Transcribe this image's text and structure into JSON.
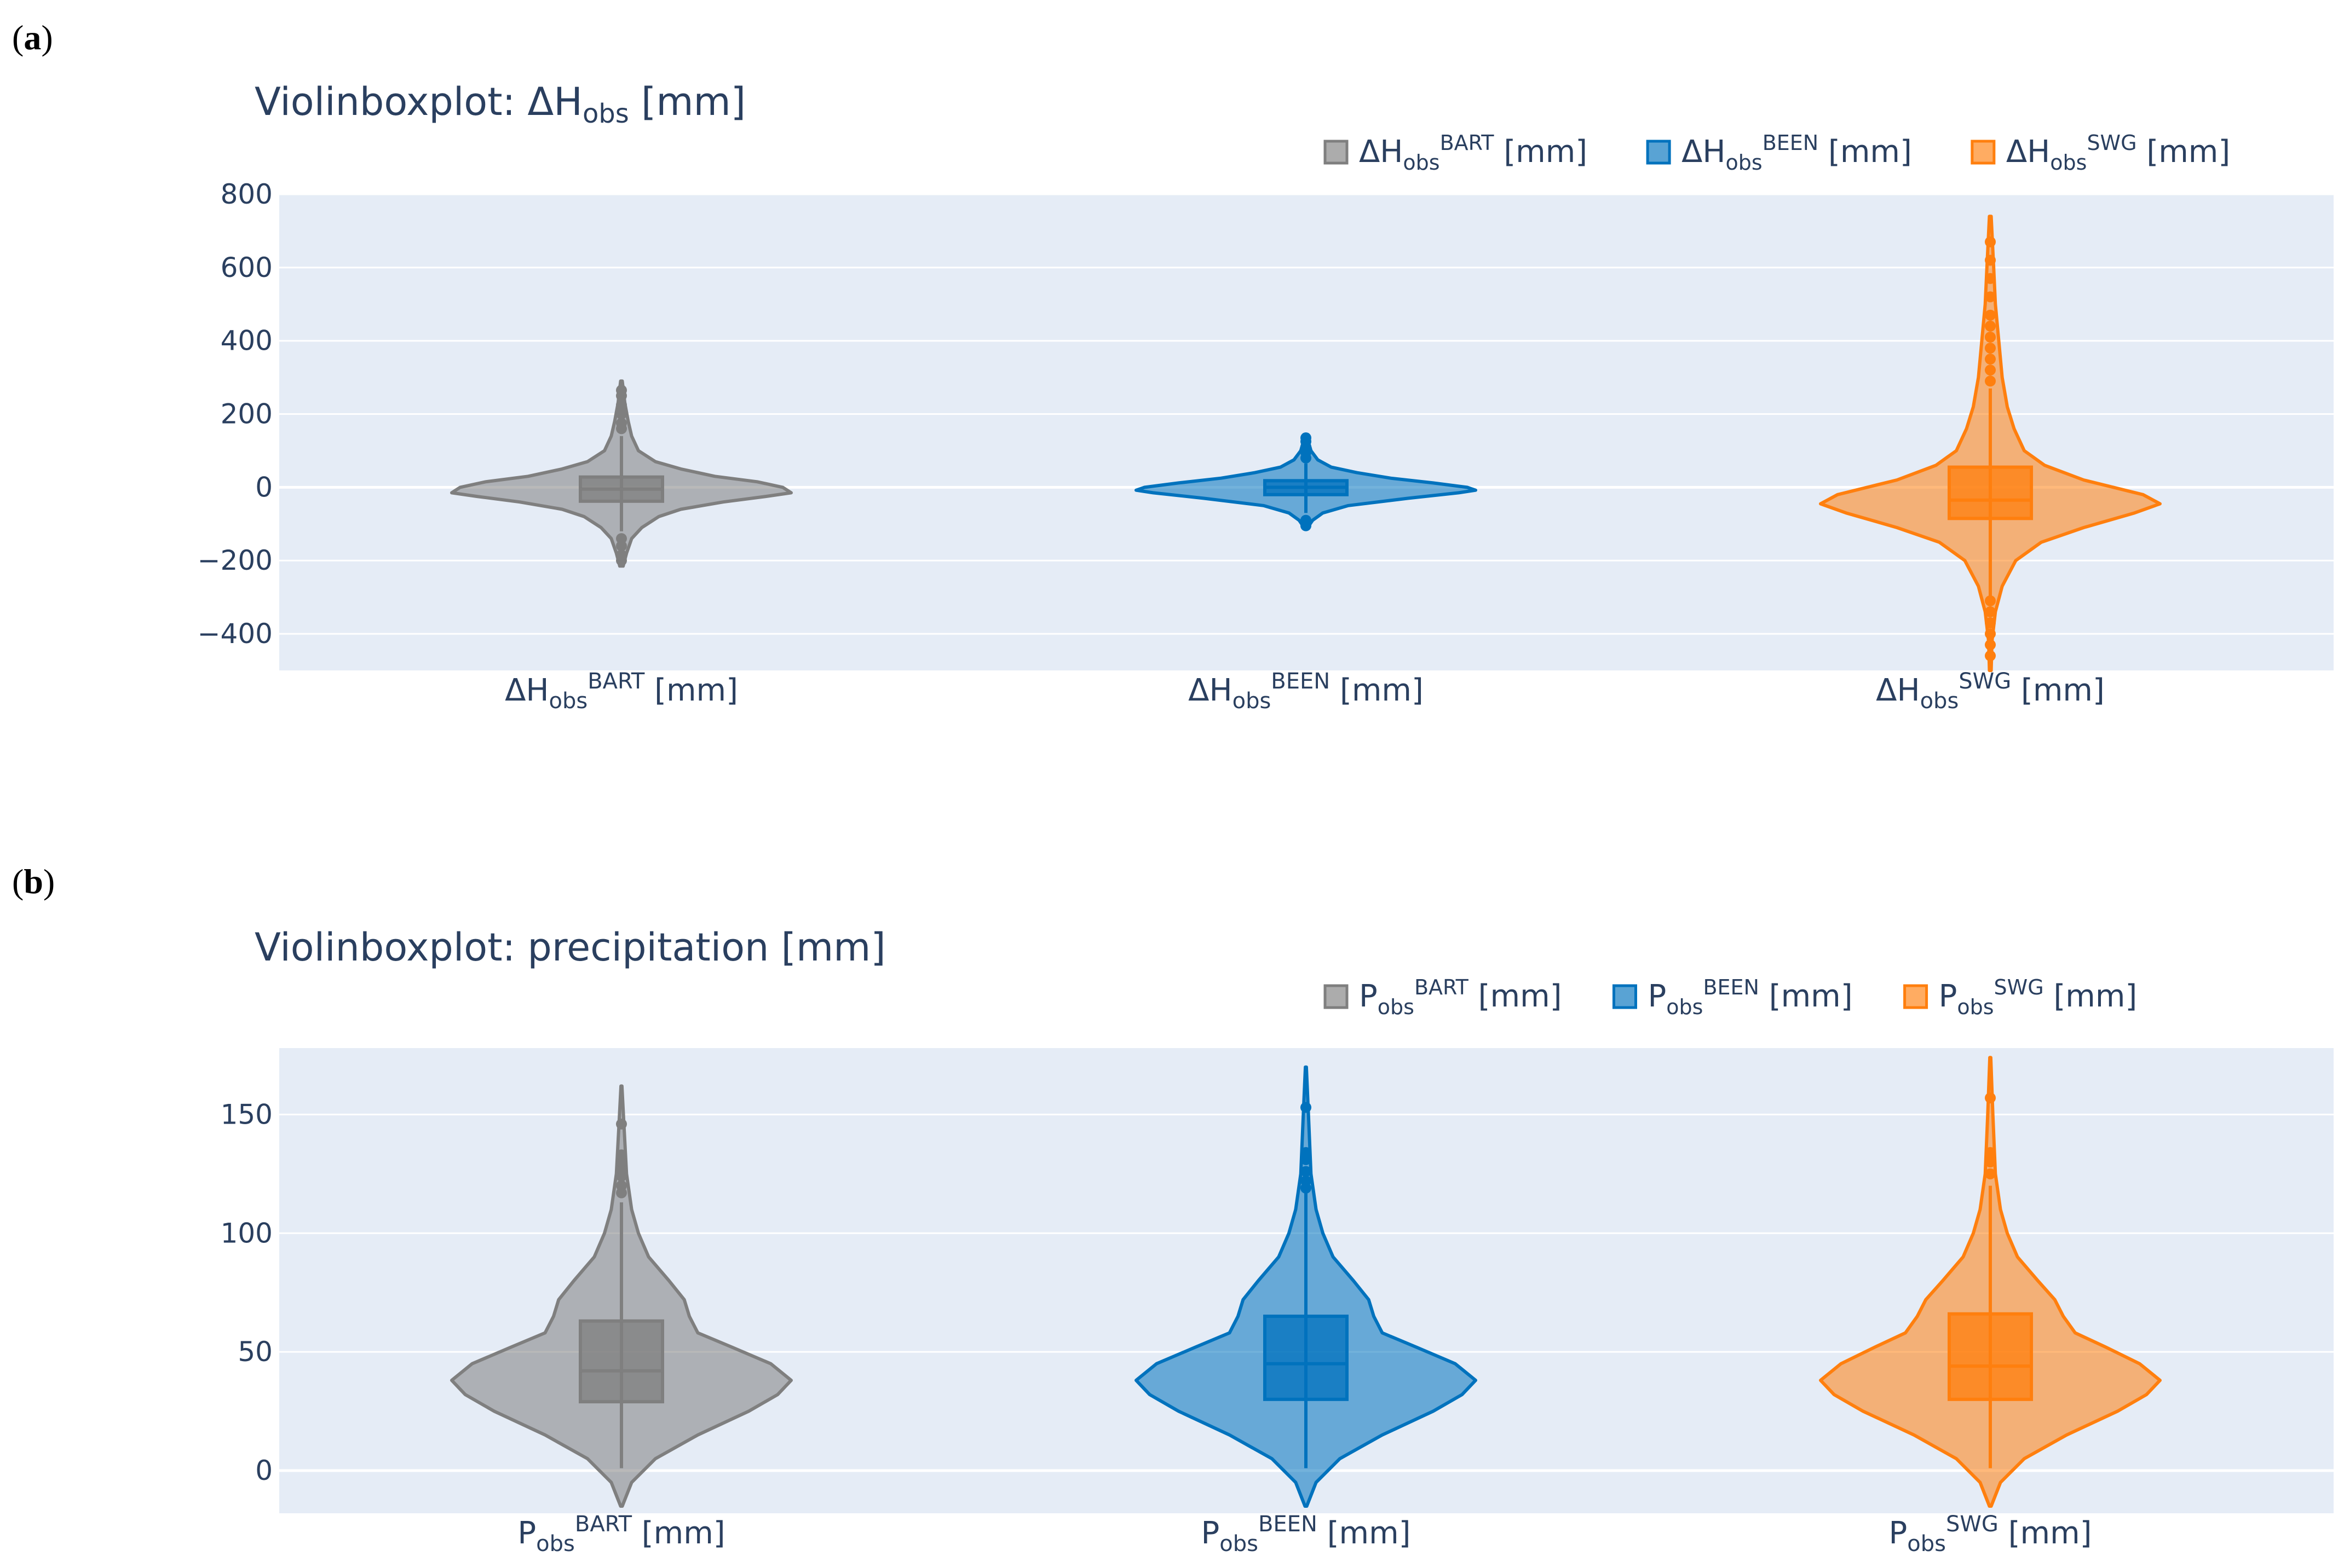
{
  "panels": [
    {
      "label": "a"
    },
    {
      "label": "b"
    }
  ],
  "chart_data": [
    {
      "type": "violin",
      "title": {
        "main": "Violinboxplot: ΔH",
        "sub": "obs",
        "suffix": " [mm]"
      },
      "ylim": [
        -500,
        800
      ],
      "yticks": [
        -400,
        -200,
        0,
        200,
        400,
        600,
        800
      ],
      "ytick_labels": [
        "−400",
        "−200",
        "0",
        "200",
        "400",
        "600",
        "800"
      ],
      "grid": true,
      "legend_placement": "top-right",
      "series": [
        {
          "name": {
            "base": "ΔH",
            "sub": "obs",
            "sup": "BART",
            "suffix": " [mm]"
          },
          "color": "#7f7f7f",
          "box": {
            "q1": -38,
            "median": -5,
            "q3": 28,
            "whisker_low": -120,
            "whisker_high": 140
          },
          "range": [
            -215,
            290
          ],
          "profile": [
            [
              -215,
              0.01
            ],
            [
              -180,
              0.03
            ],
            [
              -140,
              0.06
            ],
            [
              -110,
              0.12
            ],
            [
              -80,
              0.22
            ],
            [
              -60,
              0.35
            ],
            [
              -40,
              0.6
            ],
            [
              -25,
              0.85
            ],
            [
              -15,
              1.0
            ],
            [
              0,
              0.95
            ],
            [
              15,
              0.8
            ],
            [
              30,
              0.55
            ],
            [
              50,
              0.35
            ],
            [
              70,
              0.2
            ],
            [
              100,
              0.1
            ],
            [
              140,
              0.06
            ],
            [
              180,
              0.04
            ],
            [
              230,
              0.02
            ],
            [
              290,
              0.005
            ]
          ],
          "outliers": [
            -200,
            -185,
            -160,
            -140,
            160,
            175,
            200,
            225,
            250,
            265
          ]
        },
        {
          "name": {
            "base": "ΔH",
            "sub": "obs",
            "sup": "BEEN",
            "suffix": " [mm]"
          },
          "color": "#0072bd",
          "box": {
            "q1": -20,
            "median": 0,
            "q3": 18,
            "whisker_low": -70,
            "whisker_high": 65
          },
          "range": [
            -110,
            140
          ],
          "profile": [
            [
              -110,
              0.01
            ],
            [
              -90,
              0.04
            ],
            [
              -70,
              0.1
            ],
            [
              -50,
              0.25
            ],
            [
              -30,
              0.6
            ],
            [
              -15,
              0.9
            ],
            [
              -8,
              1.0
            ],
            [
              0,
              0.95
            ],
            [
              12,
              0.75
            ],
            [
              25,
              0.5
            ],
            [
              40,
              0.3
            ],
            [
              55,
              0.15
            ],
            [
              75,
              0.07
            ],
            [
              100,
              0.03
            ],
            [
              140,
              0.005
            ]
          ],
          "outliers": [
            -105,
            -90,
            80,
            95,
            110,
            125,
            135
          ]
        },
        {
          "name": {
            "base": "ΔH",
            "sub": "obs",
            "sup": "SWG",
            "suffix": " [mm]"
          },
          "color": "#ff7f0e",
          "box": {
            "q1": -85,
            "median": -35,
            "q3": 55,
            "whisker_low": -300,
            "whisker_high": 270
          },
          "range": [
            -500,
            740
          ],
          "profile": [
            [
              -500,
              0.005
            ],
            [
              -420,
              0.01
            ],
            [
              -340,
              0.03
            ],
            [
              -270,
              0.07
            ],
            [
              -200,
              0.15
            ],
            [
              -150,
              0.3
            ],
            [
              -110,
              0.55
            ],
            [
              -70,
              0.85
            ],
            [
              -45,
              1.0
            ],
            [
              -20,
              0.9
            ],
            [
              20,
              0.55
            ],
            [
              60,
              0.32
            ],
            [
              100,
              0.2
            ],
            [
              160,
              0.14
            ],
            [
              220,
              0.1
            ],
            [
              300,
              0.07
            ],
            [
              400,
              0.05
            ],
            [
              500,
              0.03
            ],
            [
              600,
              0.02
            ],
            [
              740,
              0.005
            ]
          ],
          "outliers": [
            -460,
            -430,
            -400,
            -370,
            -340,
            -310,
            290,
            320,
            350,
            380,
            410,
            440,
            470,
            520,
            570,
            620,
            670
          ]
        }
      ],
      "categories": [
        {
          "base": "ΔH",
          "sub": "obs",
          "sup": "BART",
          "suffix": " [mm]"
        },
        {
          "base": "ΔH",
          "sub": "obs",
          "sup": "BEEN",
          "suffix": " [mm]"
        },
        {
          "base": "ΔH",
          "sub": "obs",
          "sup": "SWG",
          "suffix": " [mm]"
        }
      ]
    },
    {
      "type": "violin",
      "title": {
        "main": "Violinboxplot: precipitation [mm]",
        "sub": "",
        "suffix": ""
      },
      "ylim": [
        -18,
        178
      ],
      "yticks": [
        0,
        50,
        100,
        150
      ],
      "ytick_labels": [
        "0",
        "50",
        "100",
        "150"
      ],
      "grid": true,
      "legend_placement": "top-right",
      "series": [
        {
          "name": {
            "base": "P",
            "sub": "obs",
            "sup": "BART",
            "suffix": " [mm]"
          },
          "color": "#7f7f7f",
          "box": {
            "q1": 29,
            "median": 42,
            "q3": 63,
            "whisker_low": 1,
            "whisker_high": 113
          },
          "range": [
            -15,
            162
          ],
          "profile": [
            [
              -15,
              0.005
            ],
            [
              -5,
              0.06
            ],
            [
              5,
              0.2
            ],
            [
              15,
              0.45
            ],
            [
              25,
              0.75
            ],
            [
              32,
              0.92
            ],
            [
              38,
              1.0
            ],
            [
              45,
              0.88
            ],
            [
              52,
              0.65
            ],
            [
              58,
              0.45
            ],
            [
              65,
              0.4
            ],
            [
              72,
              0.37
            ],
            [
              80,
              0.28
            ],
            [
              90,
              0.16
            ],
            [
              100,
              0.1
            ],
            [
              110,
              0.06
            ],
            [
              125,
              0.03
            ],
            [
              145,
              0.015
            ],
            [
              162,
              0.003
            ]
          ],
          "outliers": [
            117,
            120,
            124,
            127,
            130,
            133,
            146
          ]
        },
        {
          "name": {
            "base": "P",
            "sub": "obs",
            "sup": "BEEN",
            "suffix": " [mm]"
          },
          "color": "#0072bd",
          "box": {
            "q1": 30,
            "median": 45,
            "q3": 65,
            "whisker_low": 1,
            "whisker_high": 117
          },
          "range": [
            -15,
            170
          ],
          "profile": [
            [
              -15,
              0.005
            ],
            [
              -5,
              0.06
            ],
            [
              5,
              0.2
            ],
            [
              15,
              0.45
            ],
            [
              25,
              0.75
            ],
            [
              32,
              0.92
            ],
            [
              38,
              1.0
            ],
            [
              45,
              0.88
            ],
            [
              52,
              0.65
            ],
            [
              58,
              0.45
            ],
            [
              65,
              0.4
            ],
            [
              72,
              0.37
            ],
            [
              80,
              0.28
            ],
            [
              90,
              0.16
            ],
            [
              100,
              0.1
            ],
            [
              110,
              0.06
            ],
            [
              125,
              0.03
            ],
            [
              150,
              0.015
            ],
            [
              170,
              0.003
            ]
          ],
          "outliers": [
            119,
            122,
            126,
            131,
            134,
            153
          ]
        },
        {
          "name": {
            "base": "P",
            "sub": "obs",
            "sup": "SWG",
            "suffix": " [mm]"
          },
          "color": "#ff7f0e",
          "box": {
            "q1": 30,
            "median": 44,
            "q3": 66,
            "whisker_low": 1,
            "whisker_high": 120
          },
          "range": [
            -15,
            174
          ],
          "profile": [
            [
              -15,
              0.005
            ],
            [
              -5,
              0.06
            ],
            [
              5,
              0.2
            ],
            [
              15,
              0.45
            ],
            [
              25,
              0.75
            ],
            [
              32,
              0.92
            ],
            [
              38,
              1.0
            ],
            [
              45,
              0.88
            ],
            [
              52,
              0.68
            ],
            [
              58,
              0.5
            ],
            [
              65,
              0.43
            ],
            [
              72,
              0.38
            ],
            [
              80,
              0.28
            ],
            [
              90,
              0.16
            ],
            [
              100,
              0.1
            ],
            [
              110,
              0.06
            ],
            [
              125,
              0.03
            ],
            [
              150,
              0.015
            ],
            [
              174,
              0.003
            ]
          ],
          "outliers": [
            125,
            130,
            134,
            157
          ]
        }
      ],
      "categories": [
        {
          "base": "P",
          "sub": "obs",
          "sup": "BART",
          "suffix": " [mm]"
        },
        {
          "base": "P",
          "sub": "obs",
          "sup": "BEEN",
          "suffix": " [mm]"
        },
        {
          "base": "P",
          "sub": "obs",
          "sup": "SWG",
          "suffix": " [mm]"
        }
      ]
    }
  ]
}
